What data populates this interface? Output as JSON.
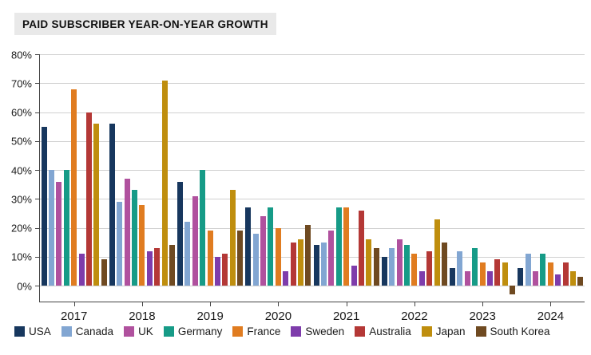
{
  "title": "PAID SUBSCRIBER YEAR-ON-YEAR GROWTH",
  "chart_data": {
    "type": "bar",
    "categories": [
      "2017",
      "2018",
      "2019",
      "2020",
      "2021",
      "2022",
      "2023",
      "2024"
    ],
    "series": [
      {
        "name": "USA",
        "color": "#17375e",
        "values": [
          55,
          56,
          36,
          27,
          14,
          10,
          6,
          6
        ]
      },
      {
        "name": "Canada",
        "color": "#82a6d2",
        "values": [
          40,
          29,
          22,
          18,
          15,
          13,
          12,
          11
        ]
      },
      {
        "name": "UK",
        "color": "#b0519e",
        "values": [
          36,
          37,
          31,
          24,
          19,
          16,
          5,
          5
        ]
      },
      {
        "name": "Germany",
        "color": "#169b87",
        "values": [
          40,
          33,
          40,
          27,
          27,
          14,
          13,
          11
        ]
      },
      {
        "name": "France",
        "color": "#e07c20",
        "values": [
          68,
          28,
          19,
          20,
          27,
          11,
          8,
          8
        ]
      },
      {
        "name": "Sweden",
        "color": "#7e3cab",
        "values": [
          11,
          12,
          10,
          5,
          7,
          5,
          5,
          4
        ]
      },
      {
        "name": "Australia",
        "color": "#b43836",
        "values": [
          60,
          13,
          11,
          15,
          26,
          12,
          9,
          8
        ]
      },
      {
        "name": "Japan",
        "color": "#bf8e0e",
        "values": [
          56,
          71,
          33,
          16,
          16,
          23,
          8,
          5
        ]
      },
      {
        "name": "South Korea",
        "color": "#6f4a21",
        "values": [
          9,
          14,
          19,
          21,
          13,
          15,
          -3,
          3
        ]
      }
    ],
    "title": "PAID SUBSCRIBER YEAR-ON-YEAR GROWTH",
    "xlabel": "",
    "ylabel": "",
    "yticks": [
      0,
      10,
      20,
      30,
      40,
      50,
      60,
      70,
      80
    ],
    "ytick_labels": [
      "0%",
      "10%",
      "20%",
      "30%",
      "40%",
      "50%",
      "60%",
      "70%",
      "80%"
    ],
    "ylim": [
      -5.5,
      80
    ],
    "grid": true,
    "legend_position": "bottom"
  }
}
